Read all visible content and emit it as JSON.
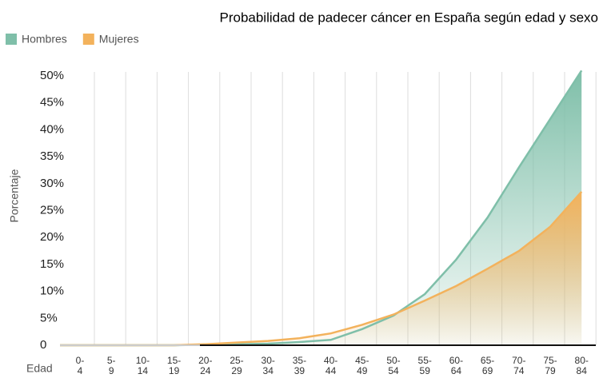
{
  "chart_data": {
    "type": "area",
    "title": "Probabilidad de padecer cáncer en España según edad y sexo",
    "x_label": "Edad",
    "y_label": "Porcentaje",
    "categories": [
      "0-4",
      "5-9",
      "10-14",
      "15-19",
      "20-24",
      "25-29",
      "30-34",
      "35-39",
      "40-44",
      "45-49",
      "50-54",
      "55-59",
      "60-64",
      "65-69",
      "70-74",
      "75-79",
      "80-84"
    ],
    "series": [
      {
        "name": "Hombres",
        "color": "#7fbfa9",
        "values": [
          0,
          0,
          0,
          0,
          0.1,
          0.2,
          0.3,
          0.6,
          1.0,
          3.0,
          5.5,
          9.5,
          15.9,
          23.7,
          33,
          42,
          51
        ]
      },
      {
        "name": "Mujeres",
        "color": "#f3b25c",
        "values": [
          0,
          0,
          0,
          0,
          0.2,
          0.5,
          0.8,
          1.3,
          2.2,
          3.8,
          5.7,
          8.3,
          11,
          14.2,
          17.5,
          22,
          28.5
        ]
      }
    ],
    "ylim": [
      0,
      50
    ],
    "yticks": [
      0,
      {
        "value": 5,
        "label": "5%"
      },
      {
        "value": 10,
        "label": "10%"
      },
      {
        "value": 15,
        "label": "15%"
      },
      {
        "value": 20,
        "label": "20%"
      },
      {
        "value": 25,
        "label": "25%"
      },
      {
        "value": 30,
        "label": "30%"
      },
      {
        "value": 35,
        "label": "35%"
      },
      {
        "value": 40,
        "label": "40%"
      },
      {
        "value": 45,
        "label": "45%"
      },
      {
        "value": 50,
        "label": "50%"
      }
    ],
    "legend": "top-left"
  }
}
